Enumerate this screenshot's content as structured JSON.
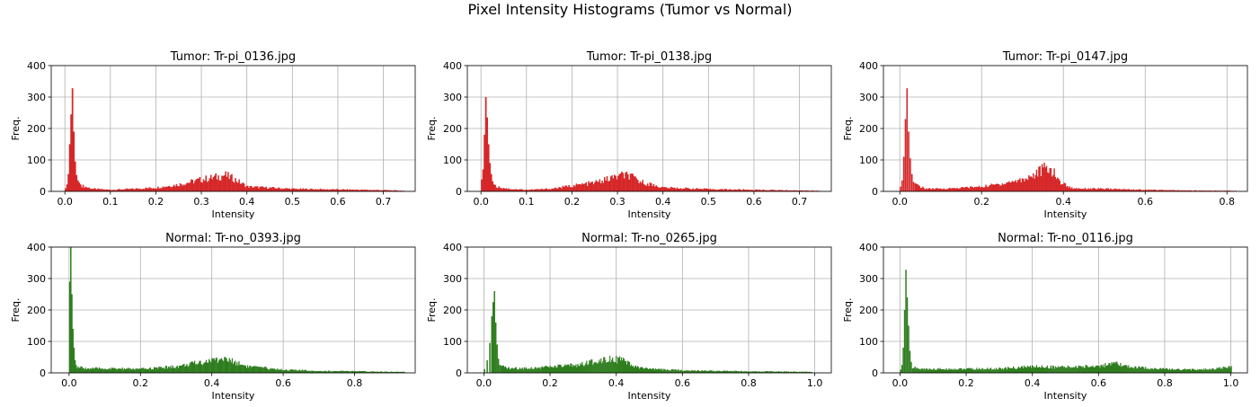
{
  "figure": {
    "suptitle": "Pixel Intensity Histograms (Tumor vs Normal)"
  },
  "colors": {
    "tumor": "#d62728",
    "normal": "#2e7d1e",
    "grid": "#b0b0b0"
  },
  "chart_data": [
    {
      "type": "bar",
      "title": "Tumor: Tr-pi_0136.jpg",
      "xlabel": "Intensity",
      "ylabel": "Freq.",
      "color": "#d62728",
      "xlim": [
        -0.03,
        0.77
      ],
      "ylim": [
        0,
        400
      ],
      "xticks": [
        0.0,
        0.1,
        0.2,
        0.3,
        0.4,
        0.5,
        0.6,
        0.7
      ],
      "xtick_labels": [
        "0.0",
        "0.1",
        "0.2",
        "0.3",
        "0.4",
        "0.5",
        "0.6",
        "0.7"
      ],
      "yticks": [
        0,
        100,
        200,
        300,
        400
      ],
      "ytick_labels": [
        "0",
        "100",
        "200",
        "300",
        "400"
      ],
      "grid": true,
      "bin_range": [
        0.0,
        0.745
      ],
      "spikes": [
        {
          "x": 0.0,
          "y": 10
        },
        {
          "x": 0.003,
          "y": 22
        },
        {
          "x": 0.006,
          "y": 55
        },
        {
          "x": 0.009,
          "y": 150
        },
        {
          "x": 0.012,
          "y": 245
        },
        {
          "x": 0.015,
          "y": 328
        },
        {
          "x": 0.018,
          "y": 190
        },
        {
          "x": 0.021,
          "y": 95
        },
        {
          "x": 0.024,
          "y": 52
        },
        {
          "x": 0.027,
          "y": 35
        },
        {
          "x": 0.03,
          "y": 28
        },
        {
          "x": 0.033,
          "y": 22
        }
      ],
      "profile": [
        {
          "x": 0.036,
          "y": 18
        },
        {
          "x": 0.06,
          "y": 8
        },
        {
          "x": 0.1,
          "y": 5
        },
        {
          "x": 0.15,
          "y": 8
        },
        {
          "x": 0.2,
          "y": 12
        },
        {
          "x": 0.25,
          "y": 22
        },
        {
          "x": 0.3,
          "y": 38
        },
        {
          "x": 0.33,
          "y": 45
        },
        {
          "x": 0.35,
          "y": 52
        },
        {
          "x": 0.37,
          "y": 40
        },
        {
          "x": 0.4,
          "y": 15
        },
        {
          "x": 0.5,
          "y": 8
        },
        {
          "x": 0.6,
          "y": 6
        },
        {
          "x": 0.7,
          "y": 4
        },
        {
          "x": 0.745,
          "y": 2
        }
      ]
    },
    {
      "type": "bar",
      "title": "Tumor: Tr-pi_0138.jpg",
      "xlabel": "Intensity",
      "ylabel": "Freq.",
      "color": "#d62728",
      "xlim": [
        -0.03,
        0.77
      ],
      "ylim": [
        0,
        400
      ],
      "xticks": [
        0.0,
        0.1,
        0.2,
        0.3,
        0.4,
        0.5,
        0.6,
        0.7
      ],
      "xtick_labels": [
        "0.0",
        "0.1",
        "0.2",
        "0.3",
        "0.4",
        "0.5",
        "0.6",
        "0.7"
      ],
      "yticks": [
        0,
        100,
        200,
        300,
        400
      ],
      "ytick_labels": [
        "0",
        "100",
        "200",
        "300",
        "400"
      ],
      "grid": true,
      "bin_range": [
        0.0,
        0.745
      ],
      "spikes": [
        {
          "x": 0.0,
          "y": 38
        },
        {
          "x": 0.003,
          "y": 70
        },
        {
          "x": 0.006,
          "y": 180
        },
        {
          "x": 0.009,
          "y": 300
        },
        {
          "x": 0.012,
          "y": 235
        },
        {
          "x": 0.015,
          "y": 150
        },
        {
          "x": 0.018,
          "y": 90
        },
        {
          "x": 0.021,
          "y": 55
        },
        {
          "x": 0.024,
          "y": 32
        },
        {
          "x": 0.027,
          "y": 22
        }
      ],
      "profile": [
        {
          "x": 0.03,
          "y": 16
        },
        {
          "x": 0.06,
          "y": 8
        },
        {
          "x": 0.1,
          "y": 5
        },
        {
          "x": 0.15,
          "y": 8
        },
        {
          "x": 0.2,
          "y": 18
        },
        {
          "x": 0.25,
          "y": 28
        },
        {
          "x": 0.3,
          "y": 48
        },
        {
          "x": 0.32,
          "y": 52
        },
        {
          "x": 0.35,
          "y": 30
        },
        {
          "x": 0.4,
          "y": 12
        },
        {
          "x": 0.5,
          "y": 7
        },
        {
          "x": 0.6,
          "y": 5
        },
        {
          "x": 0.7,
          "y": 3
        },
        {
          "x": 0.745,
          "y": 2
        }
      ]
    },
    {
      "type": "bar",
      "title": "Tumor: Tr-pi_0147.jpg",
      "xlabel": "Intensity",
      "ylabel": "Freq.",
      "color": "#d62728",
      "xlim": [
        -0.04,
        0.85
      ],
      "ylim": [
        0,
        400
      ],
      "xticks": [
        0.0,
        0.2,
        0.4,
        0.6,
        0.8
      ],
      "xtick_labels": [
        "0.0",
        "0.2",
        "0.4",
        "0.6",
        "0.8"
      ],
      "yticks": [
        0,
        100,
        200,
        300,
        400
      ],
      "ytick_labels": [
        "0",
        "100",
        "200",
        "300",
        "400"
      ],
      "grid": true,
      "bin_range": [
        0.0,
        0.82
      ],
      "spikes": [
        {
          "x": 0.0,
          "y": 15
        },
        {
          "x": 0.004,
          "y": 35
        },
        {
          "x": 0.008,
          "y": 110
        },
        {
          "x": 0.012,
          "y": 230
        },
        {
          "x": 0.016,
          "y": 328
        },
        {
          "x": 0.02,
          "y": 190
        },
        {
          "x": 0.024,
          "y": 105
        },
        {
          "x": 0.028,
          "y": 55
        },
        {
          "x": 0.032,
          "y": 30
        }
      ],
      "profile": [
        {
          "x": 0.036,
          "y": 22
        },
        {
          "x": 0.06,
          "y": 9
        },
        {
          "x": 0.1,
          "y": 8
        },
        {
          "x": 0.2,
          "y": 15
        },
        {
          "x": 0.25,
          "y": 25
        },
        {
          "x": 0.3,
          "y": 38
        },
        {
          "x": 0.33,
          "y": 55
        },
        {
          "x": 0.35,
          "y": 72
        },
        {
          "x": 0.37,
          "y": 68
        },
        {
          "x": 0.39,
          "y": 30
        },
        {
          "x": 0.42,
          "y": 10
        },
        {
          "x": 0.5,
          "y": 8
        },
        {
          "x": 0.6,
          "y": 5
        },
        {
          "x": 0.7,
          "y": 3
        },
        {
          "x": 0.82,
          "y": 2
        }
      ]
    },
    {
      "type": "bar",
      "title": "Normal: Tr-no_0393.jpg",
      "xlabel": "Intensity",
      "ylabel": "Freq.",
      "color": "#2e7d1e",
      "xlim": [
        -0.05,
        0.97
      ],
      "ylim": [
        0,
        400
      ],
      "xticks": [
        0.0,
        0.2,
        0.4,
        0.6,
        0.8
      ],
      "xtick_labels": [
        "0.0",
        "0.2",
        "0.4",
        "0.6",
        "0.8"
      ],
      "yticks": [
        0,
        100,
        200,
        300,
        400
      ],
      "ytick_labels": [
        "0",
        "100",
        "200",
        "300",
        "400"
      ],
      "grid": true,
      "bin_range": [
        0.0,
        0.94
      ],
      "spikes": [
        {
          "x": 0.0,
          "y": 290
        },
        {
          "x": 0.003,
          "y": 400
        },
        {
          "x": 0.006,
          "y": 250
        },
        {
          "x": 0.009,
          "y": 140
        },
        {
          "x": 0.012,
          "y": 80
        },
        {
          "x": 0.015,
          "y": 40
        },
        {
          "x": 0.018,
          "y": 25
        }
      ],
      "profile": [
        {
          "x": 0.021,
          "y": 18
        },
        {
          "x": 0.05,
          "y": 14
        },
        {
          "x": 0.15,
          "y": 13
        },
        {
          "x": 0.2,
          "y": 12
        },
        {
          "x": 0.3,
          "y": 20
        },
        {
          "x": 0.35,
          "y": 30
        },
        {
          "x": 0.4,
          "y": 40
        },
        {
          "x": 0.43,
          "y": 45
        },
        {
          "x": 0.47,
          "y": 32
        },
        {
          "x": 0.5,
          "y": 20
        },
        {
          "x": 0.6,
          "y": 10
        },
        {
          "x": 0.7,
          "y": 6
        },
        {
          "x": 0.8,
          "y": 5
        },
        {
          "x": 0.94,
          "y": 3
        }
      ]
    },
    {
      "type": "bar",
      "title": "Normal: Tr-no_0265.jpg",
      "xlabel": "Intensity",
      "ylabel": "Freq.",
      "color": "#2e7d1e",
      "xlim": [
        -0.05,
        1.05
      ],
      "ylim": [
        0,
        400
      ],
      "xticks": [
        0.0,
        0.2,
        0.4,
        0.6,
        0.8,
        1.0
      ],
      "xtick_labels": [
        "0.0",
        "0.2",
        "0.4",
        "0.6",
        "0.8",
        "1.0"
      ],
      "yticks": [
        0,
        100,
        200,
        300,
        400
      ],
      "ytick_labels": [
        "0",
        "100",
        "200",
        "300",
        "400"
      ],
      "grid": true,
      "bin_range": [
        0.0,
        0.99
      ],
      "spikes": [
        {
          "x": 0.0,
          "y": 12
        },
        {
          "x": 0.008,
          "y": 40
        },
        {
          "x": 0.016,
          "y": 95
        },
        {
          "x": 0.022,
          "y": 180
        },
        {
          "x": 0.026,
          "y": 225
        },
        {
          "x": 0.03,
          "y": 260
        },
        {
          "x": 0.034,
          "y": 160
        },
        {
          "x": 0.038,
          "y": 90
        },
        {
          "x": 0.042,
          "y": 45
        },
        {
          "x": 0.046,
          "y": 25
        }
      ],
      "profile": [
        {
          "x": 0.05,
          "y": 20
        },
        {
          "x": 0.08,
          "y": 14
        },
        {
          "x": 0.15,
          "y": 16
        },
        {
          "x": 0.25,
          "y": 22
        },
        {
          "x": 0.3,
          "y": 28
        },
        {
          "x": 0.35,
          "y": 40
        },
        {
          "x": 0.38,
          "y": 48
        },
        {
          "x": 0.42,
          "y": 38
        },
        {
          "x": 0.45,
          "y": 20
        },
        {
          "x": 0.5,
          "y": 12
        },
        {
          "x": 0.6,
          "y": 8
        },
        {
          "x": 0.7,
          "y": 6
        },
        {
          "x": 0.8,
          "y": 5
        },
        {
          "x": 0.9,
          "y": 4
        },
        {
          "x": 0.99,
          "y": 3
        }
      ]
    },
    {
      "type": "bar",
      "title": "Normal: Tr-no_0116.jpg",
      "xlabel": "Intensity",
      "ylabel": "Freq.",
      "color": "#2e7d1e",
      "xlim": [
        -0.05,
        1.05
      ],
      "ylim": [
        0,
        400
      ],
      "xticks": [
        0.0,
        0.2,
        0.4,
        0.6,
        0.8,
        1.0
      ],
      "xtick_labels": [
        "0.0",
        "0.2",
        "0.4",
        "0.6",
        "0.8",
        "1.0"
      ],
      "yticks": [
        0,
        100,
        200,
        300,
        400
      ],
      "ytick_labels": [
        "0",
        "100",
        "200",
        "300",
        "400"
      ],
      "grid": true,
      "bin_range": [
        0.0,
        1.0
      ],
      "spikes": [
        {
          "x": 0.0,
          "y": 10
        },
        {
          "x": 0.004,
          "y": 25
        },
        {
          "x": 0.008,
          "y": 80
        },
        {
          "x": 0.012,
          "y": 200
        },
        {
          "x": 0.016,
          "y": 328
        },
        {
          "x": 0.02,
          "y": 240
        },
        {
          "x": 0.024,
          "y": 150
        },
        {
          "x": 0.028,
          "y": 70
        },
        {
          "x": 0.032,
          "y": 35
        }
      ],
      "profile": [
        {
          "x": 0.036,
          "y": 18
        },
        {
          "x": 0.06,
          "y": 12
        },
        {
          "x": 0.15,
          "y": 12
        },
        {
          "x": 0.3,
          "y": 13
        },
        {
          "x": 0.4,
          "y": 20
        },
        {
          "x": 0.5,
          "y": 18
        },
        {
          "x": 0.6,
          "y": 22
        },
        {
          "x": 0.65,
          "y": 28
        },
        {
          "x": 0.7,
          "y": 18
        },
        {
          "x": 0.8,
          "y": 12
        },
        {
          "x": 0.9,
          "y": 10
        },
        {
          "x": 0.95,
          "y": 12
        },
        {
          "x": 1.0,
          "y": 20
        }
      ]
    }
  ]
}
